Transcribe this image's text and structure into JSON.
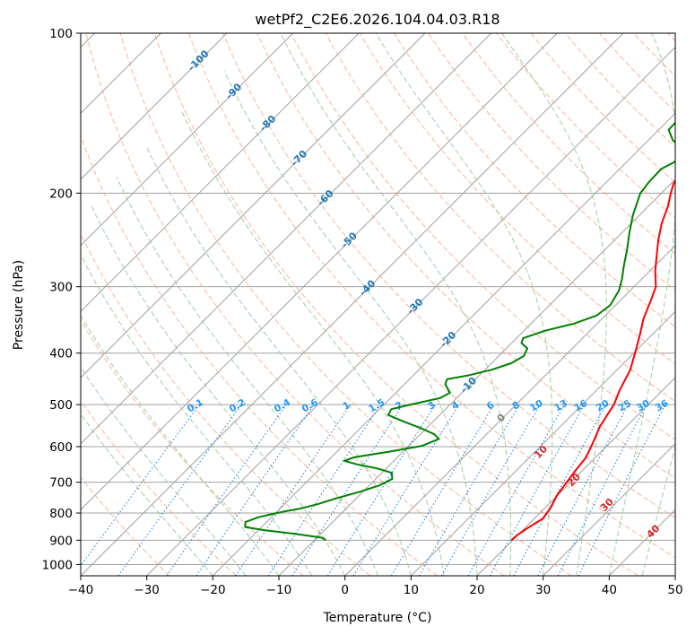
{
  "chart_data": {
    "type": "line",
    "chart_kind": "skew-T log-P diagram",
    "title": "wetPf2_C2E6.2026.104.04.03.R18",
    "xlabel": "Temperature (°C)",
    "ylabel": "Pressure (hPa)",
    "xlim": [
      -40,
      50
    ],
    "ylim": [
      1050,
      100
    ],
    "y_scale": "log",
    "x_ticks": [
      -40,
      -30,
      -20,
      -10,
      0,
      10,
      20,
      30,
      40,
      50
    ],
    "x_tick_labels": [
      "−40",
      "−30",
      "−20",
      "−10",
      "0",
      "10",
      "20",
      "30",
      "40",
      "50"
    ],
    "y_ticks": [
      1000,
      900,
      800,
      700,
      600,
      500,
      400,
      300,
      200,
      100
    ],
    "y_tick_labels": [
      "1000",
      "900",
      "800",
      "700",
      "600",
      "500",
      "400",
      "300",
      "200",
      "100"
    ],
    "colors": {
      "temperature": "#ff0000",
      "dewpoint": "#008000",
      "isotherm": "#a0a0a0",
      "dry_adiabat": "#f4a582",
      "moist_adiabat": "#90c890",
      "mixing_ratio": "#1e88e5",
      "isotherm_label": "#1f77b4",
      "mixing_label": "#2196f3",
      "theta_label_warm": "#d62728",
      "theta_label_zero": "#808080"
    },
    "series": [
      {
        "name": "Temperature",
        "color": "#ff0000",
        "points": [
          [
            19.8,
            900
          ],
          [
            19.9,
            880
          ],
          [
            20.5,
            850
          ],
          [
            21.3,
            820
          ],
          [
            20.8,
            780
          ],
          [
            19.9,
            740
          ],
          [
            19.4,
            700
          ],
          [
            18.9,
            660
          ],
          [
            18.6,
            630
          ],
          [
            17.4,
            590
          ],
          [
            16.0,
            550
          ],
          [
            14.8,
            500
          ],
          [
            13.5,
            470
          ],
          [
            12.0,
            430
          ],
          [
            10.2,
            400
          ],
          [
            8.2,
            370
          ],
          [
            6.3,
            345
          ],
          [
            4.6,
            318
          ],
          [
            3.3,
            300
          ],
          [
            0.8,
            280
          ],
          [
            -1.3,
            262
          ],
          [
            -3.4,
            245
          ],
          [
            -5.4,
            228
          ],
          [
            -7.0,
            212
          ],
          [
            -8.6,
            200
          ],
          [
            -9.6,
            192
          ],
          [
            -10.0,
            185
          ],
          [
            -9.9,
            178
          ],
          [
            -8.5,
            173
          ],
          [
            -5.5,
            167
          ],
          [
            -1.5,
            160
          ],
          [
            1.8,
            153
          ],
          [
            4.5,
            145
          ],
          [
            6.6,
            139
          ],
          [
            9.2,
            132
          ],
          [
            13.0,
            125
          ],
          [
            17.0,
            118
          ],
          [
            19.3,
            112
          ],
          [
            19.6,
            108
          ],
          [
            19.0,
            104
          ],
          [
            18.6,
            100
          ]
        ]
      },
      {
        "name": "Dewpoint",
        "color": "#008000",
        "points": [
          [
            -8.3,
            900
          ],
          [
            -9.3,
            890
          ],
          [
            -14.0,
            875
          ],
          [
            -19.0,
            862
          ],
          [
            -22.5,
            850
          ],
          [
            -23.2,
            832
          ],
          [
            -22.0,
            815
          ],
          [
            -20.3,
            803
          ],
          [
            -19.0,
            795
          ],
          [
            -17.0,
            785
          ],
          [
            -15.0,
            770
          ],
          [
            -13.0,
            750
          ],
          [
            -10.5,
            730
          ],
          [
            -8.5,
            710
          ],
          [
            -7.5,
            690
          ],
          [
            -8.5,
            672
          ],
          [
            -11.2,
            660
          ],
          [
            -15.0,
            648
          ],
          [
            -17.5,
            638
          ],
          [
            -16.5,
            628
          ],
          [
            -12.0,
            613
          ],
          [
            -8.0,
            598
          ],
          [
            -6.5,
            580
          ],
          [
            -8.0,
            568
          ],
          [
            -11.0,
            553
          ],
          [
            -14.5,
            538
          ],
          [
            -17.8,
            523
          ],
          [
            -18.2,
            510
          ],
          [
            -16.0,
            500
          ],
          [
            -12.5,
            486
          ],
          [
            -11.8,
            475
          ],
          [
            -13.8,
            458
          ],
          [
            -14.3,
            448
          ],
          [
            -11.5,
            440
          ],
          [
            -9.0,
            430
          ],
          [
            -7.0,
            418
          ],
          [
            -6.2,
            405
          ],
          [
            -6.8,
            392
          ],
          [
            -8.5,
            383
          ],
          [
            -9.0,
            375
          ],
          [
            -6.8,
            363
          ],
          [
            -3.5,
            352
          ],
          [
            -1.3,
            340
          ],
          [
            -0.8,
            325
          ],
          [
            -1.7,
            305
          ],
          [
            -3.0,
            290
          ],
          [
            -4.6,
            275
          ],
          [
            -6.6,
            256
          ],
          [
            -8.8,
            238
          ],
          [
            -11.0,
            220
          ],
          [
            -12.3,
            208
          ],
          [
            -13.2,
            200
          ],
          [
            -13.6,
            190
          ],
          [
            -13.7,
            180
          ],
          [
            -12.8,
            175
          ],
          [
            -12.3,
            170
          ],
          [
            -13.6,
            165
          ],
          [
            -16.3,
            159
          ],
          [
            -18.5,
            152
          ],
          [
            -18.6,
            146
          ],
          [
            -16.5,
            141
          ],
          [
            -14.8,
            137
          ],
          [
            -14.3,
            130
          ],
          [
            -14.5,
            123
          ],
          [
            -14.0,
            117
          ],
          [
            -12.5,
            112
          ],
          [
            -11.0,
            108
          ],
          [
            -8.5,
            104
          ],
          [
            -6.5,
            100
          ]
        ]
      }
    ],
    "isotherm_labels": [
      "-100",
      "-90",
      "-80",
      "-70",
      "-60",
      "-50",
      "-40",
      "-30",
      "-20",
      "-10"
    ],
    "isotherm_label_values": [
      -100,
      -90,
      -80,
      -70,
      -60,
      -50,
      -40,
      -30,
      -20,
      -10
    ],
    "mixing_ratio_labels": [
      "0.1",
      "0.2",
      "0.4",
      "0.6",
      "1",
      "1.5",
      "2",
      "3",
      "4",
      "6",
      "8",
      "10",
      "13",
      "16",
      "20",
      "25",
      "30",
      "36"
    ],
    "mixing_ratio_values": [
      0.1,
      0.2,
      0.4,
      0.6,
      1,
      1.5,
      2,
      3,
      4,
      6,
      8,
      10,
      13,
      16,
      20,
      25,
      30,
      36
    ],
    "theta_labels": [
      "0",
      "10",
      "20",
      "30",
      "40"
    ],
    "theta_label_values": [
      0,
      10,
      20,
      30,
      40
    ]
  }
}
